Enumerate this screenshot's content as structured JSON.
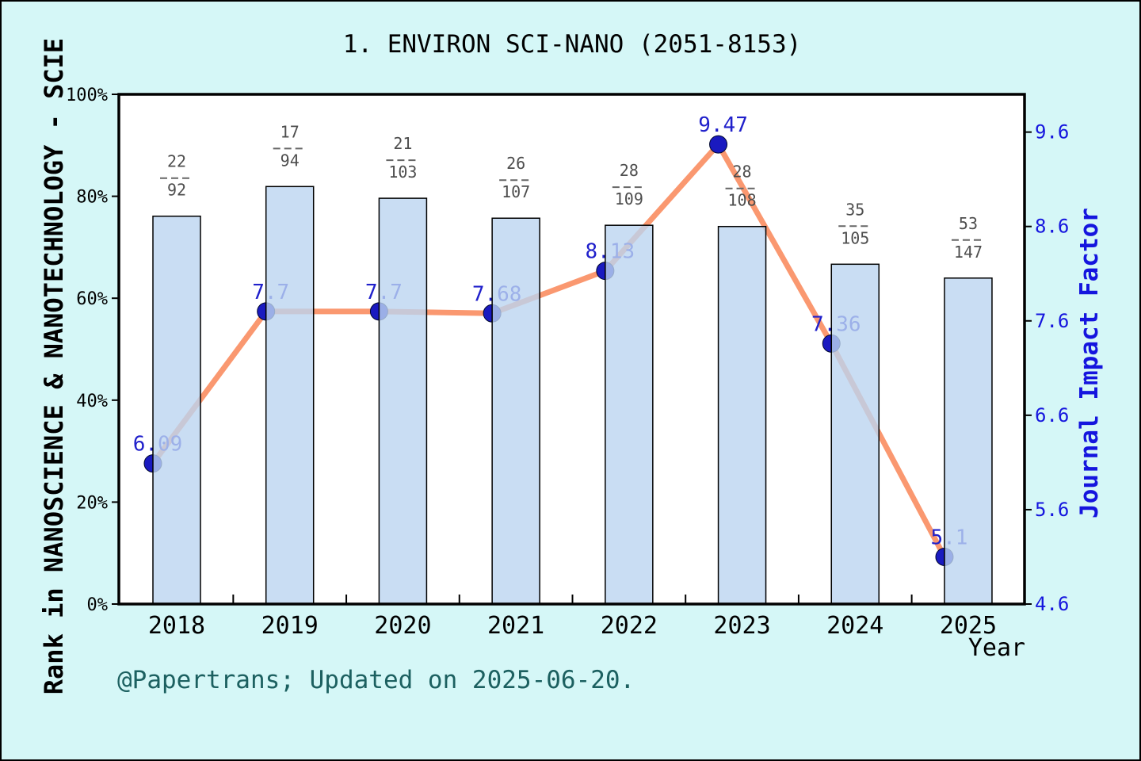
{
  "page": {
    "footer": "@Papertrans; Updated on 2025-06-20.",
    "background_color": "#D5F7F7"
  },
  "chart_data": {
    "type": "bar",
    "title": "1. ENVIRON SCI-NANO (2051-8153)",
    "categories": [
      "2018",
      "2019",
      "2020",
      "2021",
      "2022",
      "2023",
      "2024",
      "2025"
    ],
    "x_axis_label": "Year",
    "left_axis": {
      "label": "Rank in NANOSCIENCE & NANOTECHNOLOGY - SCIE",
      "tick_labels": [
        "0%",
        "20%",
        "40%",
        "60%",
        "80%",
        "100%"
      ],
      "tick_values": [
        0,
        20,
        40,
        60,
        80,
        100
      ],
      "range": [
        0,
        100
      ]
    },
    "right_axis": {
      "label": "Journal Impact Factor",
      "tick_labels": [
        "4.6",
        "5.6",
        "6.6",
        "7.6",
        "8.6",
        "9.6"
      ],
      "tick_values": [
        4.6,
        5.6,
        6.6,
        7.6,
        8.6,
        9.6
      ],
      "range": [
        4.6,
        10.0
      ]
    },
    "series": [
      {
        "name": "rank-percentile-bars",
        "type": "bar",
        "values": [
          76.09,
          81.91,
          79.61,
          75.7,
          74.31,
          74.07,
          66.67,
          63.95
        ],
        "rank_fractions": [
          {
            "numerator": "22",
            "denominator": "92"
          },
          {
            "numerator": "17",
            "denominator": "94"
          },
          {
            "numerator": "21",
            "denominator": "103"
          },
          {
            "numerator": "26",
            "denominator": "107"
          },
          {
            "numerator": "28",
            "denominator": "109"
          },
          {
            "numerator": "28",
            "denominator": "108"
          },
          {
            "numerator": "35",
            "denominator": "105"
          },
          {
            "numerator": "53",
            "denominator": "147"
          }
        ]
      },
      {
        "name": "journal-impact-factor-line",
        "type": "line",
        "values": [
          6.09,
          7.7,
          7.7,
          7.68,
          8.13,
          9.47,
          7.36,
          5.1
        ],
        "point_labels": [
          "6.09",
          "7.7",
          "7.7",
          "7.68",
          "8.13",
          "9.47",
          "7.36",
          "5.1"
        ]
      }
    ],
    "legend": "none",
    "grid": "off",
    "colors": {
      "bar_fill": "rgba(187,212,240,0.8)",
      "bar_border": "#000000",
      "line": "#FA9870",
      "point_fill": "#1A1AC0",
      "point_stroke": "#000830",
      "point_label_text": "#2020CB",
      "right_axis_text": "#1515DE",
      "fraction_text": "#4D4D4D",
      "fraction_dash": "#666666",
      "axis_line": "#000000",
      "plot_background": "#FFFFFF"
    }
  }
}
